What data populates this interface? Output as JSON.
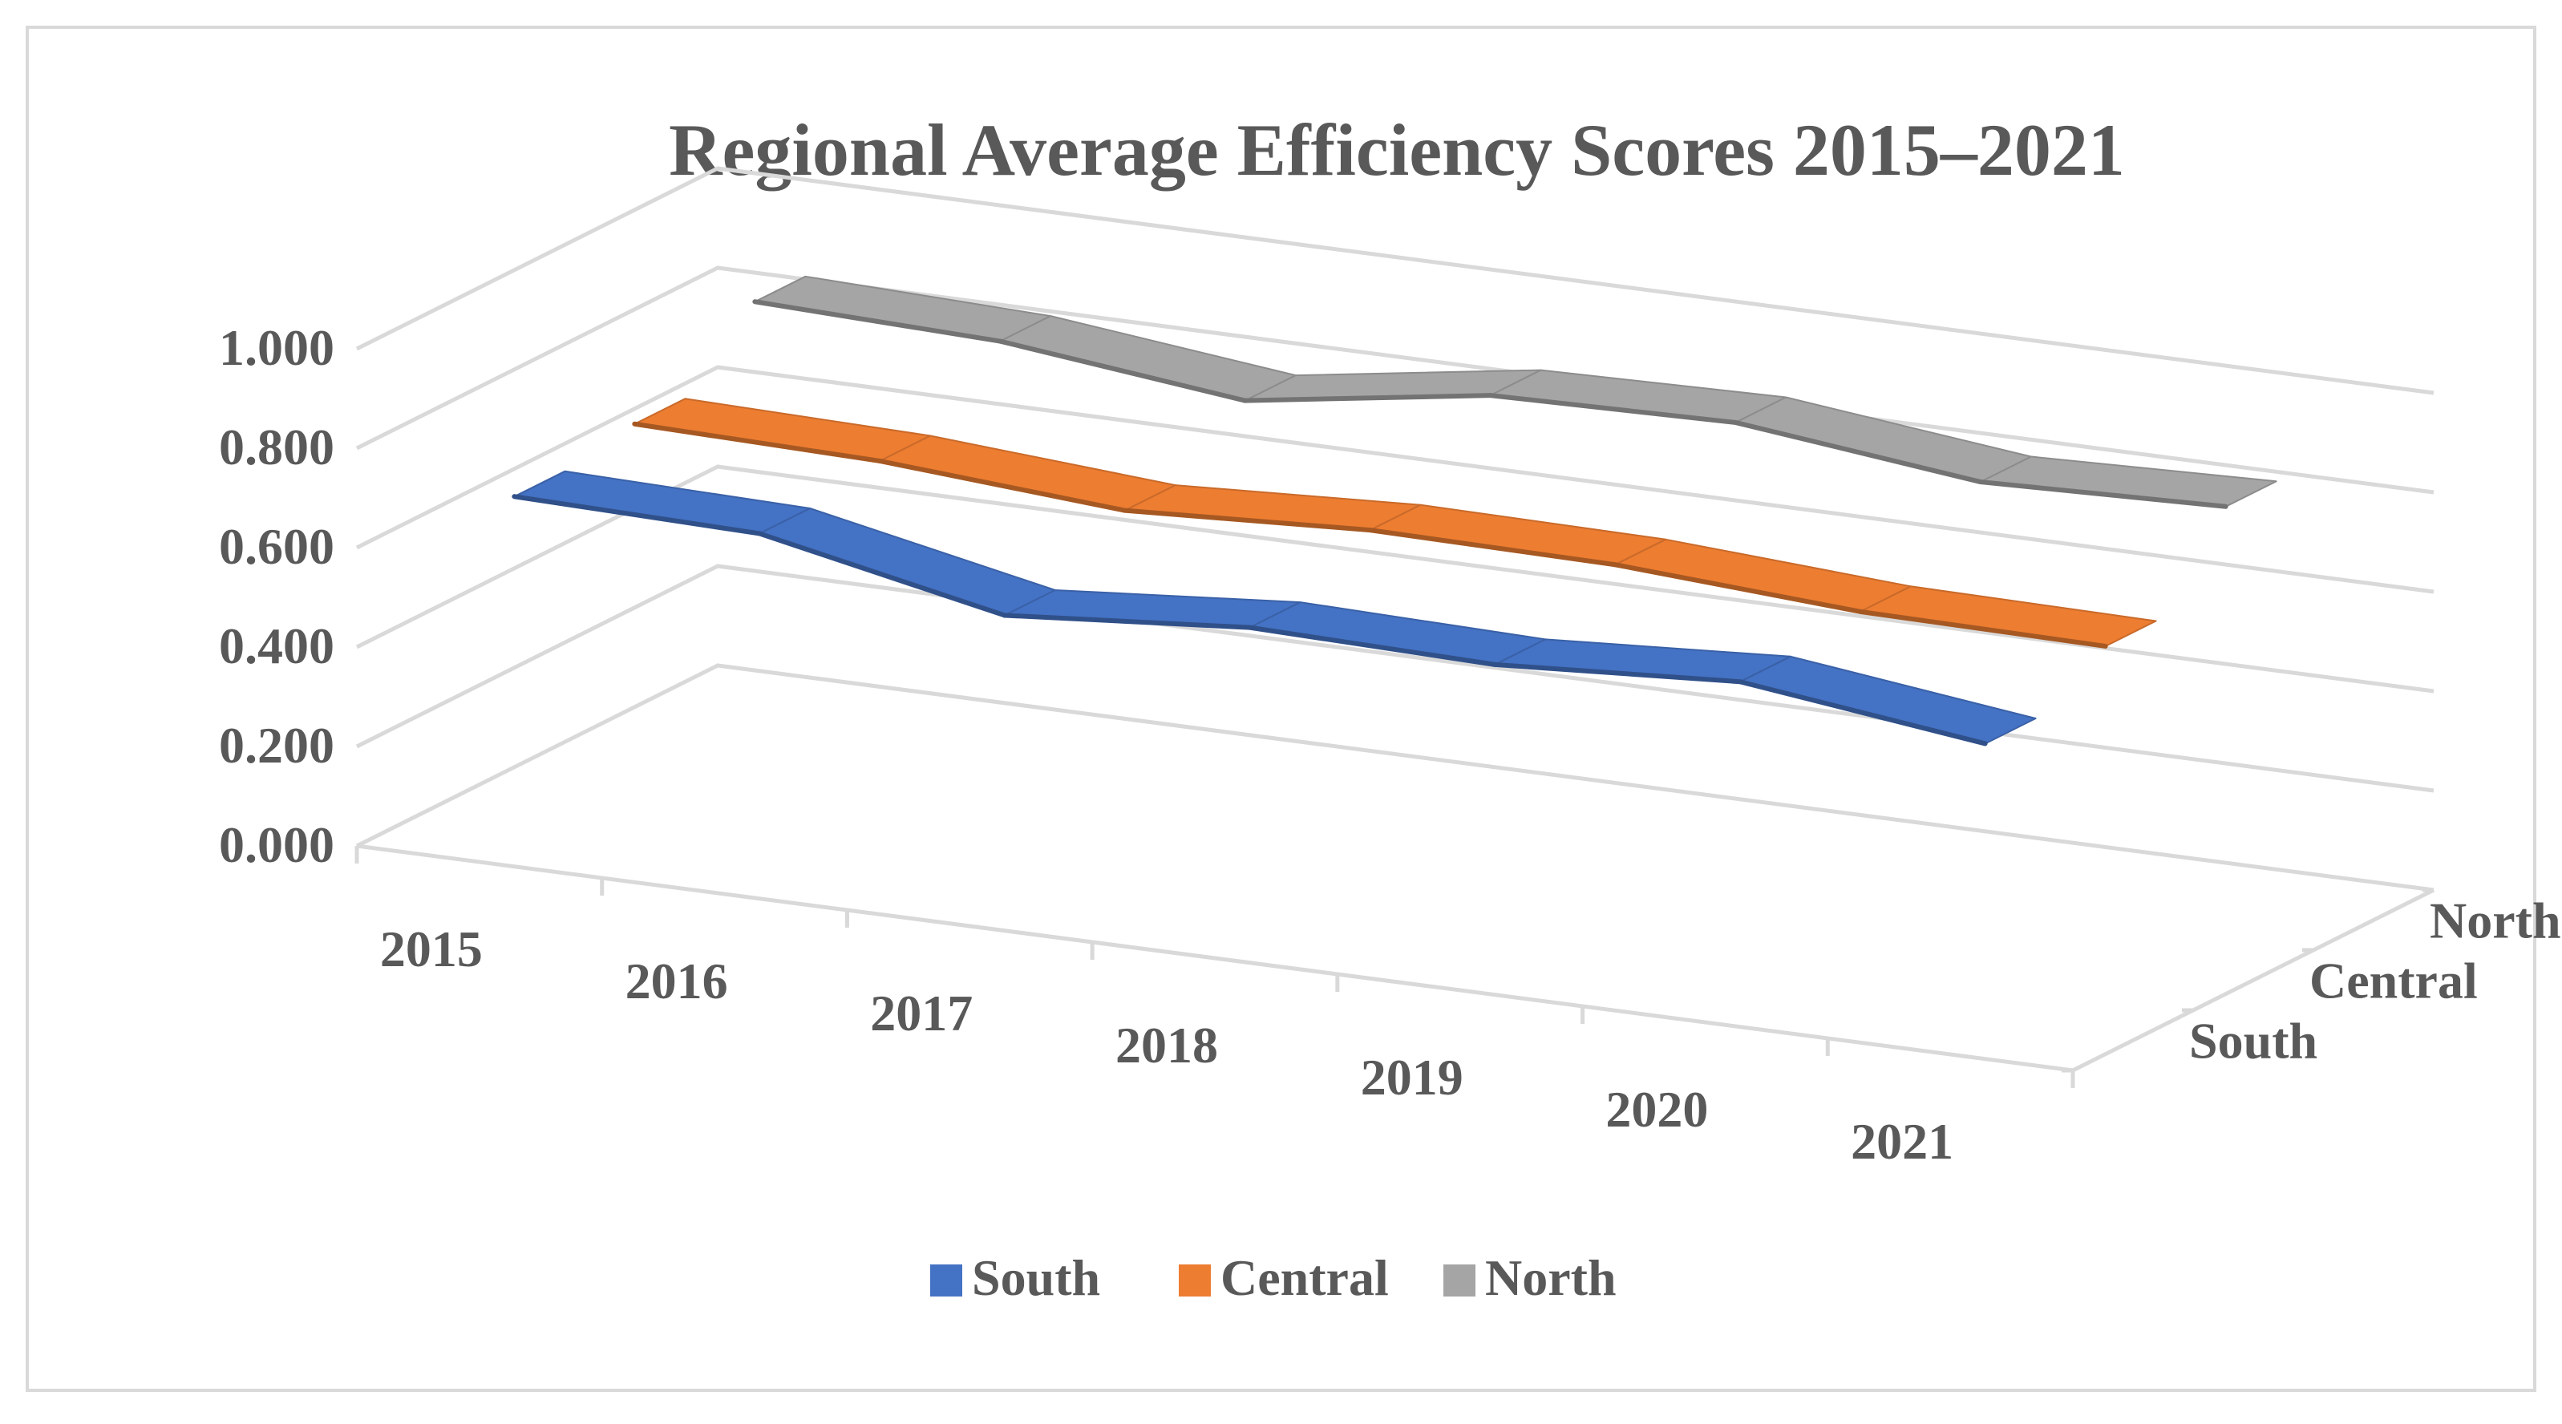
{
  "chart_data": {
    "type": "line",
    "title": "Regional Average Efficiency Scores 2015–2021",
    "categories": [
      "2015",
      "2016",
      "2017",
      "2018",
      "2019",
      "2020",
      "2021"
    ],
    "y_tick_labels": [
      "0.000",
      "0.200",
      "0.400",
      "0.600",
      "0.800",
      "1.000"
    ],
    "ylim": [
      0,
      1.0
    ],
    "depth_labels": [
      "South",
      "Central",
      "North"
    ],
    "series": [
      {
        "name": "South",
        "color": "#4472c4",
        "values": [
          0.7,
          0.69,
          0.59,
          0.63,
          0.62,
          0.65,
          0.59
        ]
      },
      {
        "name": "Central",
        "color": "#ed7d31",
        "values": [
          0.725,
          0.715,
          0.68,
          0.705,
          0.7,
          0.67,
          0.665
        ]
      },
      {
        "name": "North",
        "color": "#a5a5a5",
        "values": [
          0.85,
          0.835,
          0.78,
          0.855,
          0.865,
          0.81,
          0.825
        ]
      }
    ],
    "legend_position": "bottom",
    "grid": true
  }
}
